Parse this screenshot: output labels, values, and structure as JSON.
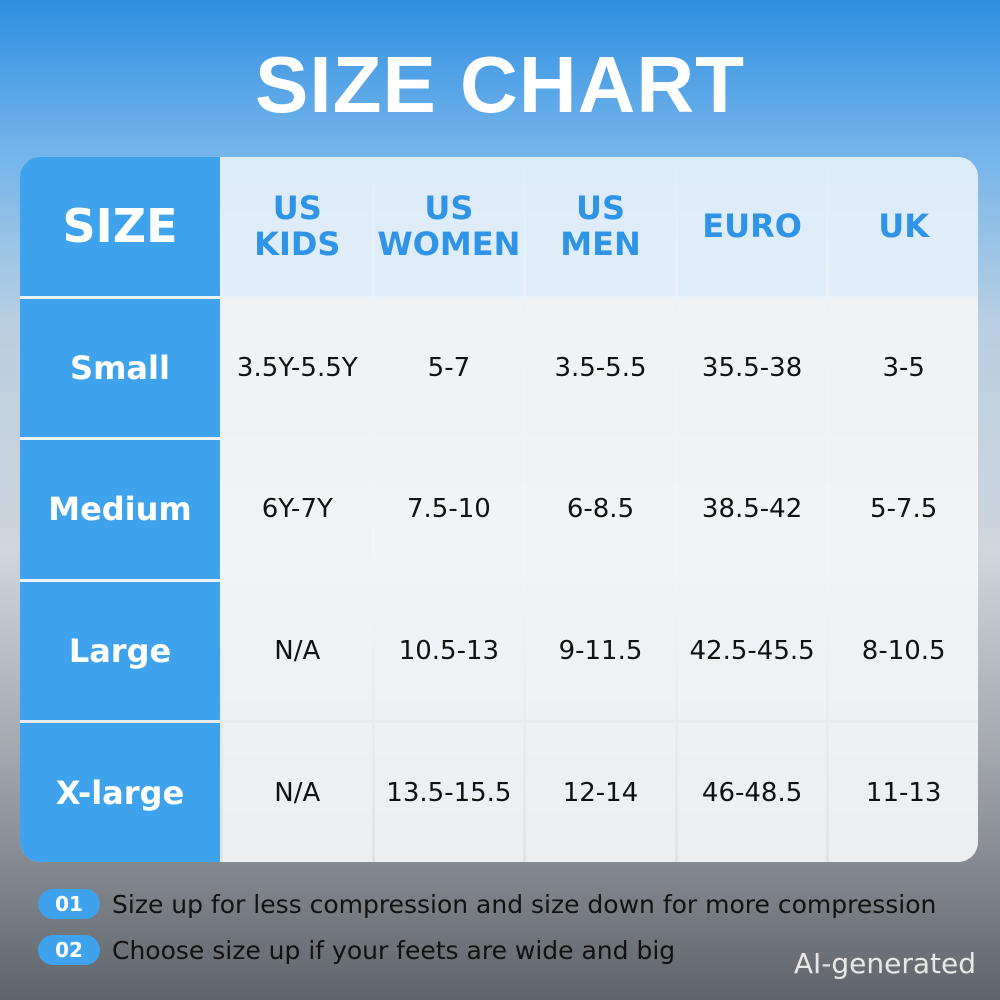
{
  "title": "SIZE CHART",
  "table": {
    "header": [
      "SIZE",
      "US\nKIDS",
      "US\nWOMEN",
      "US\nMEN",
      "EURO",
      "UK"
    ],
    "rows": [
      [
        "Small",
        "3.5Y-5.5Y",
        "5-7",
        "3.5-5.5",
        "35.5-38",
        "3-5"
      ],
      [
        "Medium",
        "6Y-7Y",
        "7.5-10",
        "6-8.5",
        "38.5-42",
        "5-7.5"
      ],
      [
        "Large",
        "N/A",
        "10.5-13",
        "9-11.5",
        "42.5-45.5",
        "8-10.5"
      ],
      [
        "X-large",
        "N/A",
        "13.5-15.5",
        "12-14",
        "46-48.5",
        "11-13"
      ]
    ]
  },
  "notes": [
    {
      "number": "01",
      "text": "Size up for less compression and size down for more compression"
    },
    {
      "number": "02",
      "text": "Choose size up if your feets are wide and big"
    }
  ],
  "watermark": "AI-generated"
}
